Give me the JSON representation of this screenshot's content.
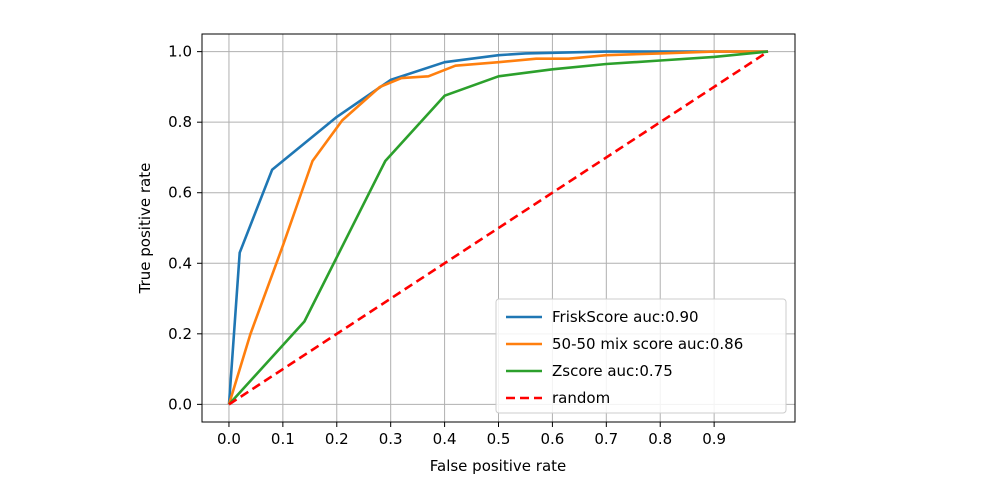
{
  "chart_data": {
    "type": "line",
    "xlabel": "False positive rate",
    "ylabel": "True positive rate",
    "xlim": [
      -0.05,
      1.05
    ],
    "ylim": [
      -0.05,
      1.05
    ],
    "x_ticks": [
      0.0,
      0.1,
      0.2,
      0.3,
      0.4,
      0.5,
      0.6,
      0.7,
      0.8,
      0.9
    ],
    "x_tick_labels": [
      "0.0",
      "0.1",
      "0.2",
      "0.3",
      "0.4",
      "0.5",
      "0.6",
      "0.7",
      "0.8",
      "0.9"
    ],
    "y_ticks": [
      0.0,
      0.2,
      0.4,
      0.6,
      0.8,
      1.0
    ],
    "y_tick_labels": [
      "0.0",
      "0.2",
      "0.4",
      "0.6",
      "0.8",
      "1.0"
    ],
    "grid": true,
    "legend_position": "lower-right",
    "series": [
      {
        "name": "FriskScore auc:0.90",
        "color": "#1f77b4",
        "dashed": false,
        "x": [
          0.0,
          0.02,
          0.08,
          0.2,
          0.3,
          0.4,
          0.5,
          0.55,
          0.7,
          0.8,
          1.0
        ],
        "y": [
          0.0,
          0.43,
          0.665,
          0.815,
          0.92,
          0.97,
          0.99,
          0.995,
          1.0,
          1.0,
          1.0
        ]
      },
      {
        "name": "50-50 mix score auc:0.86",
        "color": "#ff7f0e",
        "dashed": false,
        "x": [
          0.0,
          0.04,
          0.1,
          0.155,
          0.21,
          0.28,
          0.32,
          0.37,
          0.42,
          0.5,
          0.57,
          0.63,
          0.7,
          0.8,
          0.9,
          1.0
        ],
        "y": [
          0.0,
          0.2,
          0.45,
          0.69,
          0.805,
          0.9,
          0.925,
          0.93,
          0.96,
          0.97,
          0.98,
          0.98,
          0.99,
          0.995,
          1.0,
          1.0
        ]
      },
      {
        "name": "Zscore auc:0.75",
        "color": "#2ca02c",
        "dashed": false,
        "x": [
          0.0,
          0.14,
          0.29,
          0.4,
          0.5,
          0.6,
          0.7,
          0.8,
          0.9,
          1.0
        ],
        "y": [
          0.0,
          0.235,
          0.69,
          0.875,
          0.93,
          0.95,
          0.965,
          0.975,
          0.985,
          1.0
        ]
      },
      {
        "name": "random",
        "color": "#ff0000",
        "dashed": true,
        "x": [
          0.0,
          1.0
        ],
        "y": [
          0.0,
          1.0
        ]
      }
    ]
  }
}
